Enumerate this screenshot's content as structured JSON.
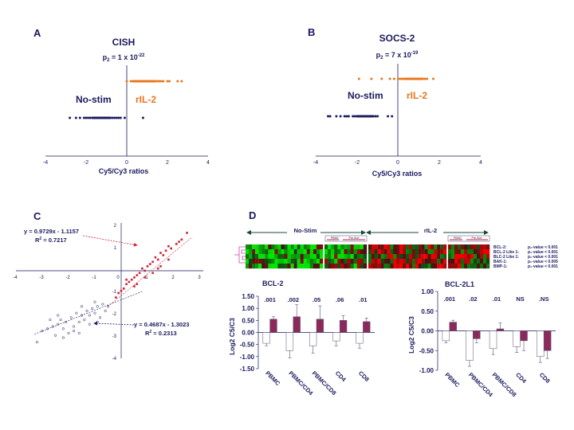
{
  "panelA": {
    "letter": "A",
    "title": "CISH",
    "p_main": "p",
    "p_sub": "2",
    "p_rest": " = 1 x 10",
    "p_exp": "-22",
    "group_nostim": "No-stim",
    "group_ril2": "rIL-2",
    "xlabel": "Cy5/Cy3 ratios",
    "ticks": [
      "-4",
      "-2",
      "0",
      "2",
      "4"
    ]
  },
  "panelB": {
    "letter": "B",
    "title": "SOCS-2",
    "p_main": "p",
    "p_sub": "2",
    "p_rest": " = 7 x 10",
    "p_exp": "-19",
    "group_nostim": "No-stim",
    "group_ril2": "rIL-2",
    "xlabel": "Cy5/Cy3 ratios",
    "ticks": [
      "-4",
      "-2",
      "0",
      "2",
      "4"
    ]
  },
  "panelC": {
    "letter": "C",
    "eq1": "y = 0.9729x - 1.1157",
    "r2_1_pre": "R",
    "r2_1_sup": "2",
    "r2_1_val": " = 0.7217",
    "eq2": "y = 0.4687x - 1.3023",
    "r2_2_pre": "R",
    "r2_2_sup": "2",
    "r2_2_val": " = 0.2313",
    "xticks": [
      "-4",
      "-3",
      "-2",
      "-1",
      "0",
      "1",
      "2",
      "3"
    ],
    "yticks": [
      "2",
      "1",
      "-1",
      "-2",
      "-3",
      "-4"
    ]
  },
  "panelD": {
    "letter": "D",
    "nostim_label": "No-Stim",
    "ril2_label": "rIL-2",
    "pbmc_label": "PBMC",
    "presort_label": "Pre-Sort",
    "gene_rows": [
      {
        "gene": "BCL-2:",
        "pval": "p₂-value < 0.001"
      },
      {
        "gene": "BCL-2 Like 1:",
        "pval": "p₂-value < 0.001"
      },
      {
        "gene": "BLC-2 Like 1:",
        "pval": "p₂-value < 0.001"
      },
      {
        "gene": "BAK-1:",
        "pval": "p₂-value < 0.005"
      },
      {
        "gene": "BMP-1:",
        "pval": "p₂-value < 0.001"
      }
    ]
  },
  "chart_data": [
    {
      "type": "scatter",
      "title": "CISH",
      "xlabel": "Cy5/Cy3 ratios",
      "xlim": [
        -4,
        4
      ],
      "series": [
        {
          "name": "No-stim",
          "color": "#1a1a5e",
          "x": [
            -2.8,
            -2.5,
            -2.3,
            -2.1,
            -2.0,
            -1.9,
            -1.8,
            -1.7,
            -1.65,
            -1.6,
            -1.55,
            -1.5,
            -1.45,
            -1.4,
            -1.35,
            -1.3,
            -1.25,
            -1.2,
            -1.15,
            -1.1,
            -1.05,
            -1.0,
            -0.95,
            -0.9,
            -0.85,
            -0.8,
            -0.7,
            -0.6,
            -0.5,
            -0.4,
            -0.3,
            -0.1,
            0.8
          ]
        },
        {
          "name": "rIL-2",
          "color": "#e8761c",
          "x": [
            0.0,
            0.2,
            0.3,
            0.35,
            0.4,
            0.45,
            0.5,
            0.55,
            0.6,
            0.65,
            0.7,
            0.75,
            0.8,
            0.85,
            0.9,
            0.95,
            1.0,
            1.05,
            1.1,
            1.15,
            1.2,
            1.25,
            1.3,
            1.35,
            1.4,
            1.5,
            1.6,
            1.7,
            1.8,
            2.0,
            2.1,
            2.5,
            2.7
          ]
        }
      ]
    },
    {
      "type": "scatter",
      "title": "SOCS-2",
      "xlabel": "Cy5/Cy3 ratios",
      "xlim": [
        -4,
        4
      ],
      "series": [
        {
          "name": "No-stim",
          "color": "#1a1a5e",
          "x": [
            -3.4,
            -3.3,
            -3.0,
            -2.8,
            -2.6,
            -2.5,
            -2.4,
            -2.2,
            -2.1,
            -2.0,
            -1.95,
            -1.9,
            -1.85,
            -1.8,
            -1.75,
            -1.7,
            -1.65,
            -1.6,
            -1.55,
            -1.5,
            -1.45,
            -1.4,
            -1.35,
            -1.3,
            -1.25,
            -1.2,
            -1.1,
            -1.0,
            -0.5,
            -0.3
          ]
        },
        {
          "name": "rIL-2",
          "color": "#e8761c",
          "x": [
            -1.9,
            -1.3,
            -0.8,
            -0.4,
            -0.2,
            0.0,
            0.1,
            0.2,
            0.3,
            0.35,
            0.4,
            0.45,
            0.5,
            0.55,
            0.6,
            0.65,
            0.7,
            0.75,
            0.8,
            0.85,
            0.9,
            0.95,
            1.0,
            1.05,
            1.1,
            1.15,
            1.2,
            1.3,
            1.4,
            1.7
          ]
        }
      ]
    },
    {
      "type": "scatter",
      "title": "",
      "xlim": [
        -4,
        3
      ],
      "ylim": [
        -4,
        2
      ],
      "series": [
        {
          "name": "red",
          "color": "#cc2233",
          "x": [
            2.5,
            2.3,
            2.1,
            1.9,
            1.8,
            1.7,
            1.6,
            1.5,
            1.4,
            1.3,
            1.2,
            1.1,
            1.0,
            0.9,
            0.8,
            0.7,
            0.6,
            0.5,
            0.4,
            0.3,
            0.2,
            0.1,
            0.0,
            -0.1,
            -0.2,
            1.5,
            1.2,
            0.9,
            0.6,
            2.2,
            1.8,
            1.4,
            0.2,
            0.5
          ],
          "y": [
            1.7,
            1.4,
            1.2,
            1.0,
            1.1,
            0.9,
            0.7,
            0.8,
            0.5,
            0.6,
            0.4,
            0.3,
            0.2,
            0.0,
            0.1,
            -0.1,
            -0.2,
            -0.3,
            -0.4,
            -0.5,
            -0.6,
            -0.8,
            -0.9,
            -1.0,
            -1.2,
            0.2,
            -0.1,
            -0.3,
            -0.6,
            1.3,
            0.5,
            0.1,
            -0.4,
            -0.7
          ]
        },
        {
          "name": "blue",
          "color": "#1a1a5e",
          "x": [
            -3.2,
            -3.0,
            -2.8,
            -2.6,
            -2.5,
            -2.4,
            -2.3,
            -2.2,
            -2.1,
            -2.0,
            -1.9,
            -1.8,
            -1.7,
            -1.6,
            -1.5,
            -1.4,
            -1.3,
            -1.2,
            -1.1,
            -1.0,
            -0.9,
            -0.8,
            -0.7,
            -0.6,
            -2.2,
            -1.8,
            -1.5,
            -1.2,
            -2.7,
            -1.0,
            -0.5,
            -1.6,
            -2.4,
            -0.9
          ],
          "y": [
            -3.2,
            -2.7,
            -2.6,
            -2.5,
            -2.9,
            -2.4,
            -2.2,
            -2.6,
            -2.3,
            -2.8,
            -2.1,
            -2.5,
            -1.9,
            -2.3,
            -2.0,
            -2.2,
            -1.8,
            -2.4,
            -1.7,
            -1.9,
            -1.6,
            -2.1,
            -1.5,
            -1.8,
            -3.0,
            -2.7,
            -1.6,
            -2.0,
            -2.2,
            -1.4,
            -1.6,
            -2.8,
            -2.0,
            -2.3
          ]
        }
      ],
      "fits": [
        {
          "slope": 0.9729,
          "intercept": -1.1157,
          "r2": 0.7217
        },
        {
          "slope": 0.4687,
          "intercept": -1.3023,
          "r2": 0.2313
        }
      ]
    },
    {
      "type": "bar",
      "title": "BCL-2",
      "ylabel": "Log2 C5/C3",
      "ylim": [
        -1.5,
        1.5
      ],
      "yticks": [
        "1.50",
        "1.00",
        "0.50",
        "0.00",
        "-0.50",
        "-1.00",
        "-1.50"
      ],
      "categories": [
        "PBMC",
        "PBMC/CD4",
        "PBMC/CD8",
        "CD4",
        "CD8"
      ],
      "pvalues": [
        ".001",
        ".002",
        ".05",
        ".06",
        ".01"
      ],
      "series": [
        {
          "name": "No-stim",
          "color": "#ffffff",
          "values": [
            -0.45,
            -0.75,
            -0.55,
            -0.35,
            -0.45
          ],
          "errors": [
            0.1,
            0.3,
            0.3,
            0.2,
            0.2
          ]
        },
        {
          "name": "rIL-2",
          "color": "#8b2a5a",
          "values": [
            0.55,
            0.65,
            0.55,
            0.5,
            0.45
          ],
          "errors": [
            0.1,
            0.5,
            0.55,
            0.2,
            0.15
          ]
        }
      ]
    },
    {
      "type": "bar",
      "title": "BCL-2L1",
      "ylabel": "Log2 C5/C3",
      "ylim": [
        -1.0,
        1.0
      ],
      "yticks": [
        "1.00",
        "0.50",
        "0.00",
        "-0.50",
        "-1.00"
      ],
      "categories": [
        "PBMC",
        "PBMC/CD4",
        "PBMC/CD8",
        "CD4",
        "CD8"
      ],
      "pvalues": [
        ".001",
        ".02",
        ".01",
        "NS",
        ".NS"
      ],
      "series": [
        {
          "name": "No-stim",
          "color": "#ffffff",
          "values": [
            -0.25,
            -0.75,
            -0.45,
            -0.4,
            -0.65
          ],
          "errors": [
            0.05,
            0.15,
            0.15,
            0.15,
            0.15
          ]
        },
        {
          "name": "rIL-2",
          "color": "#8b2a5a",
          "values": [
            0.22,
            -0.2,
            0.05,
            -0.25,
            -0.5
          ],
          "errors": [
            0.05,
            0.1,
            0.15,
            0.25,
            0.2
          ]
        }
      ]
    }
  ]
}
